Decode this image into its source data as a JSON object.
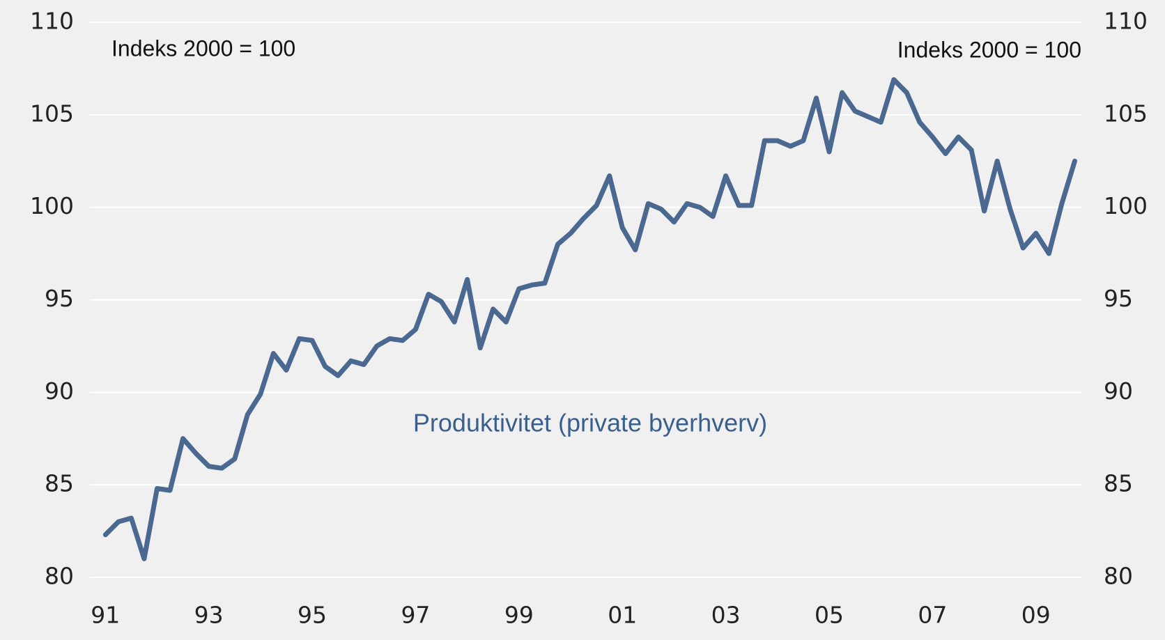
{
  "chart_data": {
    "type": "line",
    "annotations": [
      "Indeks 2000 = 100",
      "Indeks 2000 = 100"
    ],
    "series": [
      {
        "name": "Produktivitet (private byerhverv)",
        "color": "#4a6890",
        "values": [
          82.3,
          83.0,
          83.2,
          81.0,
          84.8,
          84.7,
          87.5,
          86.7,
          86.0,
          85.9,
          86.4,
          88.8,
          89.9,
          92.1,
          91.2,
          92.9,
          92.8,
          91.4,
          90.9,
          91.7,
          91.5,
          92.5,
          92.9,
          92.8,
          93.4,
          95.3,
          94.9,
          93.8,
          96.1,
          92.4,
          94.5,
          93.8,
          95.6,
          95.8,
          95.9,
          98.0,
          98.6,
          99.4,
          100.1,
          101.7,
          98.9,
          97.7,
          100.2,
          99.9,
          99.2,
          100.2,
          100.0,
          99.5,
          101.7,
          100.1,
          100.1,
          103.6,
          103.6,
          103.3,
          103.6,
          105.9,
          103.0,
          106.2,
          105.2,
          104.9,
          104.6,
          106.9,
          106.2,
          104.6,
          103.8,
          102.9,
          103.8,
          103.1,
          99.8,
          102.5,
          99.9,
          97.8,
          98.6,
          97.5,
          100.2,
          102.5
        ]
      }
    ],
    "x": [
      1991.0,
      1991.25,
      1991.5,
      1991.75,
      1992.0,
      1992.25,
      1992.5,
      1992.75,
      1993.0,
      1993.25,
      1993.5,
      1993.75,
      1994.0,
      1994.25,
      1994.5,
      1994.75,
      1995.0,
      1995.25,
      1995.5,
      1995.75,
      1996.0,
      1996.25,
      1996.5,
      1996.75,
      1997.0,
      1997.25,
      1997.5,
      1997.75,
      1998.0,
      1998.25,
      1998.5,
      1998.75,
      1999.0,
      1999.25,
      1999.5,
      1999.75,
      2000.0,
      2000.25,
      2000.5,
      2000.75,
      2001.0,
      2001.25,
      2001.5,
      2001.75,
      2002.0,
      2002.25,
      2002.5,
      2002.75,
      2003.0,
      2003.25,
      2003.5,
      2003.75,
      2004.0,
      2004.25,
      2004.5,
      2004.75,
      2005.0,
      2005.25,
      2005.5,
      2005.75,
      2006.0,
      2006.25,
      2006.5,
      2006.75,
      2007.0,
      2007.25,
      2007.5,
      2007.75,
      2008.0,
      2008.25,
      2008.5,
      2008.75,
      2009.0,
      2009.25,
      2009.5,
      2009.75
    ],
    "xlim": [
      1990.7,
      2010.0
    ],
    "xticks": [
      {
        "value": 1991,
        "label": "91"
      },
      {
        "value": 1993,
        "label": "93"
      },
      {
        "value": 1995,
        "label": "95"
      },
      {
        "value": 1997,
        "label": "97"
      },
      {
        "value": 1999,
        "label": "99"
      },
      {
        "value": 2001,
        "label": "01"
      },
      {
        "value": 2003,
        "label": "03"
      },
      {
        "value": 2005,
        "label": "05"
      },
      {
        "value": 2007,
        "label": "07"
      },
      {
        "value": 2009,
        "label": "09"
      }
    ],
    "ylim": [
      80,
      110
    ],
    "yticks": [
      80,
      85,
      90,
      95,
      100,
      105,
      110
    ],
    "y2lim": [
      80,
      110
    ],
    "y2ticks": [
      80,
      85,
      90,
      95,
      100,
      105,
      110
    ],
    "grid": true
  }
}
